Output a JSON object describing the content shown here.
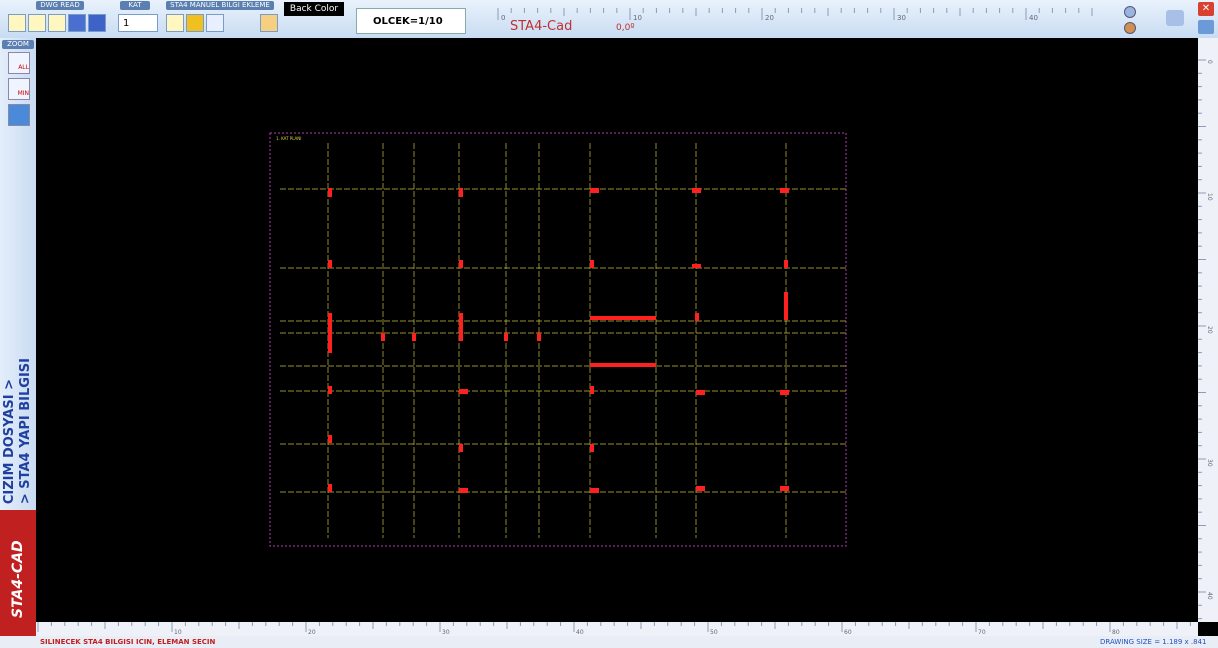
{
  "toolbar": {
    "dwg_read": "DWG READ",
    "kat": "KAT",
    "kat_value": "1",
    "manuel": "STA4 MANUEL BILGI EKLEME",
    "back_color": "Back Color",
    "olcek": "OLCEK=1/10",
    "app": "STA4-Cad",
    "angle": "0,0º"
  },
  "top_ruler": [
    "0",
    "10",
    "20",
    "30",
    "40"
  ],
  "zoom": {
    "title": "ZOOM",
    "all": "ALL",
    "min": "MIN"
  },
  "side": {
    "line1": "CIZIM DOSYASI >",
    "line2": "> STA4 YAPI BILGISI",
    "logo": "STA4-CAD"
  },
  "drawing": {
    "title": "1. KAT PLANI"
  },
  "right_ruler": [
    "0",
    "10",
    "20",
    "30",
    "40"
  ],
  "bottom_ruler": [
    "10",
    "20",
    "30",
    "40",
    "50",
    "60",
    "70",
    "80"
  ],
  "status": {
    "message": "SILINECEK STA4 BILGISI ICIN, ELEMAN SECIN",
    "size": "DRAWING SIZE = 1.189 x .841"
  }
}
